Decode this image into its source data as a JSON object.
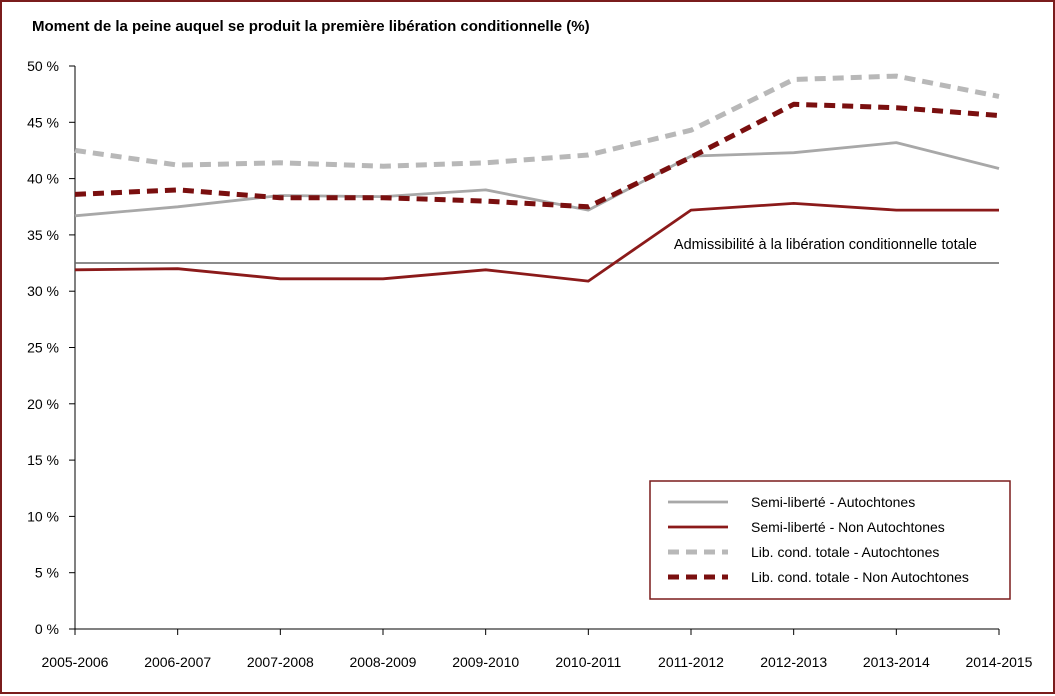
{
  "chart_data": {
    "type": "line",
    "title": "Moment de la peine auquel se produit la première libération conditionnelle (%)",
    "categories": [
      "2005-2006",
      "2006-2007",
      "2007-2008",
      "2008-2009",
      "2009-2010",
      "2010-2011",
      "2011-2012",
      "2012-2013",
      "2013-2014",
      "2014-2015"
    ],
    "ylim": [
      0,
      50
    ],
    "yticks": [
      0,
      5,
      10,
      15,
      20,
      25,
      30,
      35,
      40,
      45,
      50
    ],
    "ytick_labels": [
      "0 %",
      "5 %",
      "10 %",
      "15 %",
      "20 %",
      "25 %",
      "30 %",
      "35 %",
      "40 %",
      "45 %",
      "50 %"
    ],
    "grid": false,
    "legend_position": "bottom-right",
    "series": [
      {
        "name": "Semi-liberté - Autochtones",
        "color": "#a8a8a8",
        "dash": "solid",
        "values": [
          36.7,
          37.5,
          38.5,
          38.4,
          39.0,
          37.2,
          42.0,
          42.3,
          43.2,
          40.9
        ]
      },
      {
        "name": "Semi-liberté - Non Autochtones",
        "color": "#8b1a1a",
        "dash": "solid",
        "values": [
          31.9,
          32.0,
          31.1,
          31.1,
          31.9,
          30.9,
          37.2,
          37.8,
          37.2,
          37.2
        ]
      },
      {
        "name": "Lib. cond. totale - Autochtones",
        "color": "#b8b8b8",
        "dash": "dashed",
        "values": [
          42.5,
          41.2,
          41.4,
          41.1,
          41.4,
          42.1,
          44.3,
          48.8,
          49.1,
          47.3
        ]
      },
      {
        "name": "Lib. cond. totale - Non Autochtones",
        "color": "#7a0f0f",
        "dash": "dashed",
        "values": [
          38.6,
          39.0,
          38.3,
          38.3,
          38.0,
          37.5,
          41.9,
          46.6,
          46.3,
          45.6
        ]
      }
    ],
    "reference_line": {
      "label": "Admissibilité à la libération conditionnelle totale",
      "value": 32.5,
      "color": "#666666"
    }
  }
}
